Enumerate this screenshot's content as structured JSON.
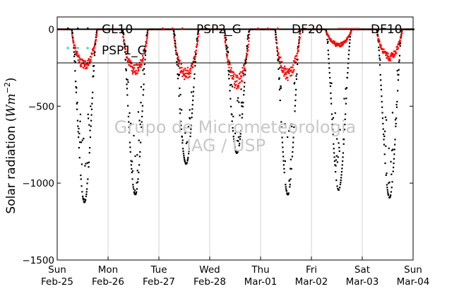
{
  "chart_data": {
    "type": "scatter",
    "ylabel_main": "Solar radiation (",
    "ylabel_unit_main": "Wm",
    "ylabel_unit_exp": "−2",
    "ylabel_close": ")",
    "ylim": [
      -1500,
      80
    ],
    "yticks": [
      0,
      -500,
      -1000,
      -1500
    ],
    "ytick_labels": [
      "0",
      "−500",
      "−1000",
      "−1500"
    ],
    "xlim": [
      0,
      7
    ],
    "xticks": [
      0,
      1,
      2,
      3,
      4,
      5,
      6,
      7
    ],
    "xtick_labels": [
      {
        "day": "Sun",
        "date": "Feb-25"
      },
      {
        "day": "Mon",
        "date": "Feb-26"
      },
      {
        "day": "Tue",
        "date": "Feb-27"
      },
      {
        "day": "Wed",
        "date": "Feb-28"
      },
      {
        "day": "Thu",
        "date": "Mar-01"
      },
      {
        "day": "Fri",
        "date": "Mar-02"
      },
      {
        "day": "Sat",
        "date": "Mar-03"
      },
      {
        "day": "Sun",
        "date": "Mar-04"
      }
    ],
    "grid": "vertical",
    "legend_position": "top",
    "series": [
      {
        "name": "GL10",
        "color": "#000000",
        "marker": "dot"
      },
      {
        "name": "PSP2_G",
        "color": "#ff0000",
        "marker": "dot"
      },
      {
        "name": "DF20",
        "color": "#ff0000",
        "marker": "dot"
      },
      {
        "name": "DF10",
        "color": "#ff6666",
        "marker": "line"
      },
      {
        "name": "PSP1_G",
        "color": "#40e0d0",
        "marker": "dot"
      }
    ],
    "daily_global_min": [
      -1120,
      -1070,
      -870,
      -800,
      -1070,
      -1040,
      -1090
    ],
    "daily_diffuse_min": [
      -260,
      -300,
      -330,
      -390,
      -330,
      -110,
      -200
    ],
    "watermark_line1": "Grupo de Micrometeorologia",
    "watermark_line2": "IAG / USP"
  }
}
